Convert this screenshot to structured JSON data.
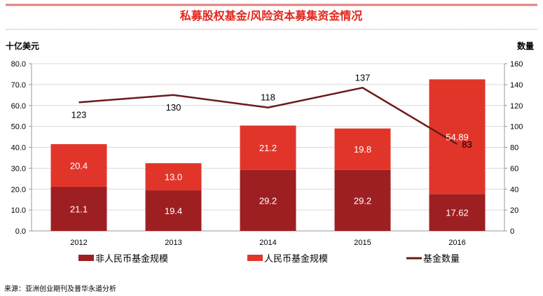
{
  "chart_data": {
    "type": "bar",
    "stacked": true,
    "title": "私募股权基金/风险资本募集资金情况",
    "ylabel": "十亿美元",
    "y2label": "数量",
    "categories": [
      "2012",
      "2013",
      "2014",
      "2015",
      "2016"
    ],
    "ylim": [
      0,
      80
    ],
    "yticks": [
      "0.0",
      "10.0",
      "20.0",
      "30.0",
      "40.0",
      "50.0",
      "60.0",
      "70.0",
      "80.0"
    ],
    "y2lim": [
      0,
      160
    ],
    "y2ticks": [
      "0",
      "20",
      "40",
      "60",
      "80",
      "100",
      "120",
      "140",
      "160"
    ],
    "grid": true,
    "legend_position": "bottom",
    "series": [
      {
        "name": "非人民币基金规模",
        "type": "bar",
        "axis": "left",
        "color": "#9e1f22",
        "values": [
          21.1,
          19.4,
          29.2,
          29.2,
          17.62
        ],
        "labels": [
          "21.1",
          "19.4",
          "29.2",
          "29.2",
          "17.62"
        ]
      },
      {
        "name": "人民币基金规模",
        "type": "bar",
        "axis": "left",
        "color": "#e2352a",
        "values": [
          20.4,
          13.0,
          21.2,
          19.8,
          54.89
        ],
        "labels": [
          "20.4",
          "13.0",
          "21.2",
          "19.8",
          "54.89"
        ]
      },
      {
        "name": "基金数量",
        "type": "line",
        "axis": "right",
        "color": "#6b1a1a",
        "values": [
          123,
          130,
          118,
          137,
          83
        ],
        "labels": [
          "123",
          "130",
          "118",
          "137",
          "83"
        ]
      }
    ],
    "source": "来源：亚洲创业期刊及普华永道分析"
  },
  "colors": {
    "title": "#e2261c",
    "rule": "#e08080"
  }
}
